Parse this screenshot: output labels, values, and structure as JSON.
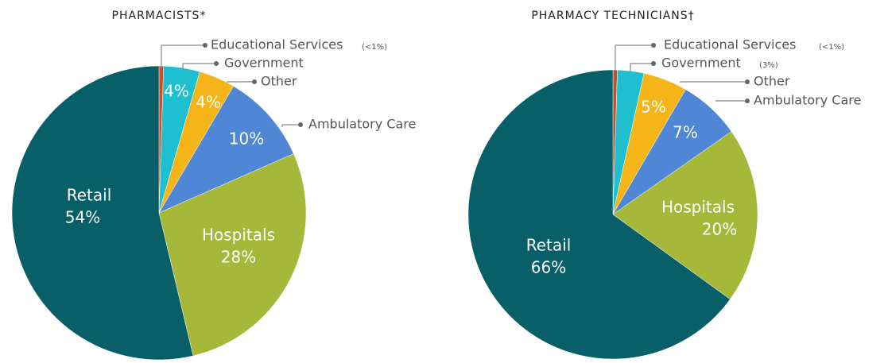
{
  "chart_data": [
    {
      "type": "pie",
      "title": "PHARMACISTS*",
      "categories": [
        "Educational Services",
        "Government",
        "Other",
        "Ambulatory Care",
        "Hospitals",
        "Retail"
      ],
      "values": [
        0.5,
        4,
        4,
        10,
        28,
        54
      ],
      "value_labels": [
        "(<1%)",
        "4%",
        "4%",
        "10%",
        "28%",
        "54%"
      ],
      "colors": [
        "#c0522a",
        "#1fbfcf",
        "#f5b417",
        "#4f86d6",
        "#a5b83a",
        "#085f68"
      ]
    },
    {
      "type": "pie",
      "title": "PHARMACY TECHNICIANS†",
      "categories": [
        "Educational Services",
        "Government",
        "Other",
        "Ambulatory Care",
        "Hospitals",
        "Retail"
      ],
      "values": [
        0.5,
        3,
        5,
        7,
        20,
        66
      ],
      "value_labels": [
        "(<1%)",
        "(3%)",
        "5%",
        "7%",
        "20%",
        "66%"
      ],
      "colors": [
        "#c0522a",
        "#1fbfcf",
        "#f5b417",
        "#4f86d6",
        "#a5b83a",
        "#085f68"
      ]
    }
  ]
}
